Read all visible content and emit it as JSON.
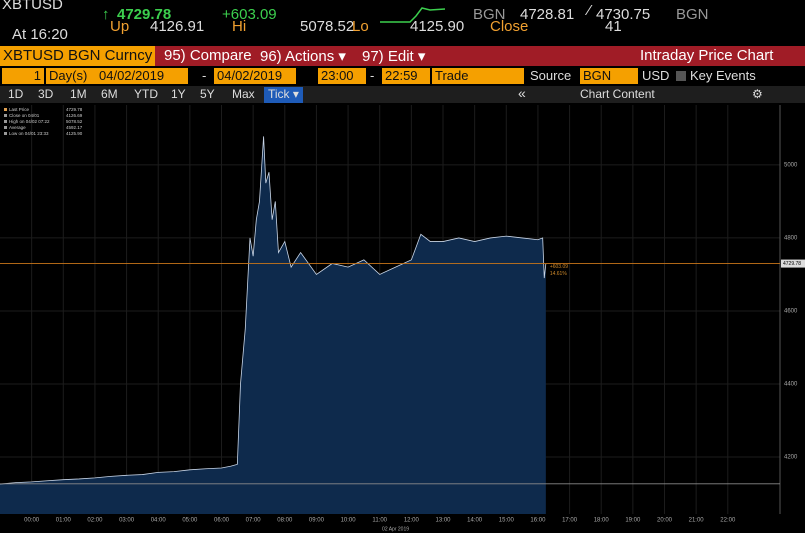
{
  "header": {
    "ticker": "XBTUSD",
    "arrow": "↑",
    "last": "4729.78",
    "change": "+603.09",
    "src1": "BGN",
    "bid": "4728.81",
    "sep": "⁄",
    "ask": "4730.75",
    "src2": "BGN",
    "time": "At 16:20",
    "open_label": "Up",
    "open": "4126.91",
    "hi_label": "Hi",
    "hi": "5078.52",
    "lo_label": "Lo",
    "lo": "4125.90",
    "close_label": "Close",
    "volume": "41"
  },
  "menu": {
    "security": "XBTUSD BGN Curncy",
    "compare": "95) Compare",
    "actions": "96) Actions ▾",
    "edit": "97) Edit ▾",
    "title": "Intraday Price Chart"
  },
  "controls": {
    "days": "1",
    "days_unit": "Day(s)",
    "start_date": "04/02/2019",
    "dash1": "-",
    "end_date": "04/02/2019",
    "start_time": "23:00",
    "dash2": "-",
    "end_time": "22:59",
    "field": "Trade",
    "source_label": "Source",
    "source": "BGN",
    "currency": "USD",
    "key_events": "Key Events"
  },
  "ranges": {
    "buttons": [
      "1D",
      "3D",
      "1M",
      "6M",
      "YTD",
      "1Y",
      "5Y",
      "Max"
    ],
    "selected": "Tick ▾",
    "collapse": "«",
    "chart_content": "Chart Content",
    "settings": "⚙"
  },
  "chart_data": {
    "type": "area",
    "xlabel": "02 Apr 2019",
    "legend_items": [
      {
        "label": "Last Price",
        "value": "4729.78"
      },
      {
        "label": "Close on 04/01",
        "value": "4126.69"
      },
      {
        "label": "High on 04/02 07:22",
        "value": "5078.52"
      },
      {
        "label": "Average",
        "value": "4592.17"
      },
      {
        "label": "Low on 04/01 23:33",
        "value": "4125.90"
      }
    ],
    "x": [
      -1,
      -0.5,
      0,
      0.5,
      1,
      1.5,
      2,
      2.5,
      3,
      3.5,
      4,
      4.5,
      5,
      5.5,
      6,
      6.3,
      6.5,
      6.6,
      6.75,
      6.9,
      7.0,
      7.1,
      7.2,
      7.33,
      7.4,
      7.5,
      7.6,
      7.7,
      7.8,
      8.0,
      8.2,
      8.5,
      9.0,
      9.5,
      10.0,
      10.5,
      11.0,
      11.5,
      12.0,
      12.3,
      12.6,
      13.0,
      13.5,
      14.0,
      14.5,
      15.0,
      15.5,
      16.0,
      16.15,
      16.2,
      16.25
    ],
    "series": [
      {
        "name": "Last Price",
        "color": "#c9d6e8",
        "fill": "#0e2a4c",
        "values": [
          4126,
          4130,
          4132,
          4135,
          4138,
          4140,
          4143,
          4147,
          4150,
          4152,
          4158,
          4160,
          4165,
          4168,
          4170,
          4175,
          4180,
          4400,
          4550,
          4800,
          4750,
          4850,
          4900,
          5078,
          4950,
          4980,
          4850,
          4900,
          4760,
          4790,
          4720,
          4760,
          4700,
          4730,
          4720,
          4740,
          4700,
          4720,
          4740,
          4810,
          4790,
          4790,
          4800,
          4790,
          4800,
          4805,
          4800,
          4795,
          4800,
          4690,
          4729.78
        ]
      }
    ],
    "reference_lines": [
      {
        "value": 4126.69,
        "color": "#8a8a8a"
      },
      {
        "value": 4729.78,
        "color": "#c9761a"
      }
    ],
    "change_labels": [
      "+603.09",
      "14.61%"
    ],
    "xlim": [
      -1,
      23.65
    ],
    "ylim": [
      4044,
      5164
    ],
    "xticks": [
      {
        "value": 0,
        "label": "00:00"
      },
      {
        "value": 1,
        "label": "01:00"
      },
      {
        "value": 2,
        "label": "02:00"
      },
      {
        "value": 3,
        "label": "03:00"
      },
      {
        "value": 4,
        "label": "04:00"
      },
      {
        "value": 5,
        "label": "05:00"
      },
      {
        "value": 6,
        "label": "06:00"
      },
      {
        "value": 7,
        "label": "07:00"
      },
      {
        "value": 8,
        "label": "08:00"
      },
      {
        "value": 9,
        "label": "09:00"
      },
      {
        "value": 10,
        "label": "10:00"
      },
      {
        "value": 11,
        "label": "11:00"
      },
      {
        "value": 12,
        "label": "12:00"
      },
      {
        "value": 13,
        "label": "13:00"
      },
      {
        "value": 14,
        "label": "14:00"
      },
      {
        "value": 15,
        "label": "15:00"
      },
      {
        "value": 16,
        "label": "16:00"
      },
      {
        "value": 17,
        "label": "17:00"
      },
      {
        "value": 18,
        "label": "18:00"
      },
      {
        "value": 19,
        "label": "19:00"
      },
      {
        "value": 20,
        "label": "20:00"
      },
      {
        "value": 21,
        "label": "21:00"
      },
      {
        "value": 22,
        "label": "22:00"
      }
    ],
    "yticks": [
      4200,
      4400,
      4600,
      4800,
      5000
    ],
    "grid": true
  }
}
